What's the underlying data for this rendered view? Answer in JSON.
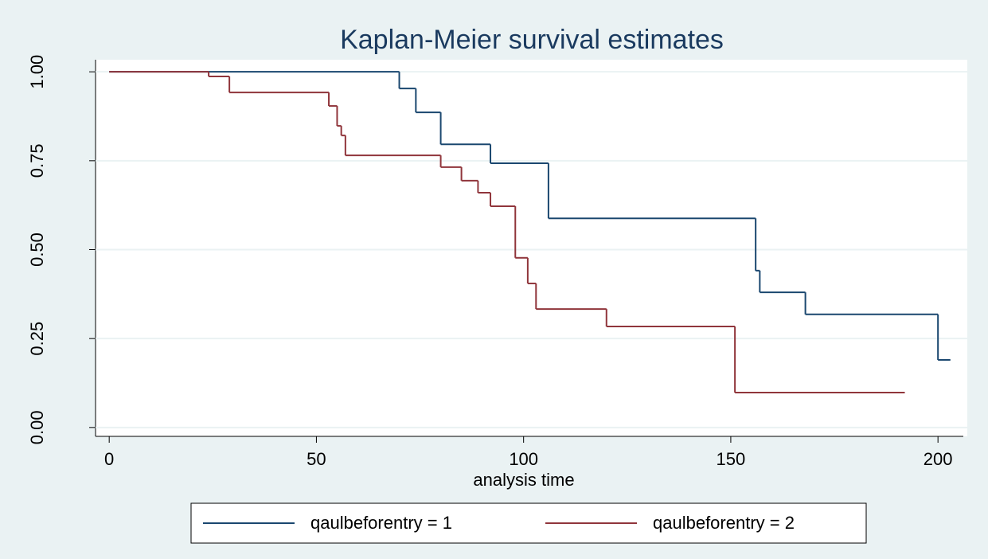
{
  "chart_data": {
    "type": "step",
    "title": "Kaplan-Meier survival estimates",
    "x_label": "analysis time",
    "xlim": [
      -3.3,
      206.5
    ],
    "xticks": [
      0,
      50,
      100,
      150,
      200
    ],
    "ylim": [
      -0.025,
      1.034
    ],
    "yticks": [
      {
        "value": 0,
        "label": "0.00"
      },
      {
        "value": 0.25,
        "label": "0.25"
      },
      {
        "value": 0.5,
        "label": "0.50"
      },
      {
        "value": 0.75,
        "label": "0.75"
      },
      {
        "value": 1,
        "label": "1.00"
      }
    ],
    "grid": true,
    "legend": "bottom",
    "series": [
      {
        "name": "qaulbeforentry = 1",
        "color": "#1a476f",
        "x": [
          0,
          70,
          74,
          80,
          92,
          106,
          156,
          157,
          168,
          200,
          203
        ],
        "values": [
          1,
          0.953,
          0.886,
          0.796,
          0.743,
          0.588,
          0.441,
          0.38,
          0.318,
          0.19,
          0.19
        ]
      },
      {
        "name": "qaulbeforentry = 2",
        "color": "#90353b",
        "x": [
          0,
          24,
          29,
          53,
          55,
          56,
          57,
          80,
          85,
          89,
          92,
          98,
          101,
          103,
          120,
          151,
          192
        ],
        "values": [
          1,
          0.987,
          0.942,
          0.904,
          0.848,
          0.821,
          0.765,
          0.732,
          0.694,
          0.66,
          0.622,
          0.477,
          0.405,
          0.333,
          0.284,
          0.098,
          0.098
        ]
      }
    ]
  }
}
